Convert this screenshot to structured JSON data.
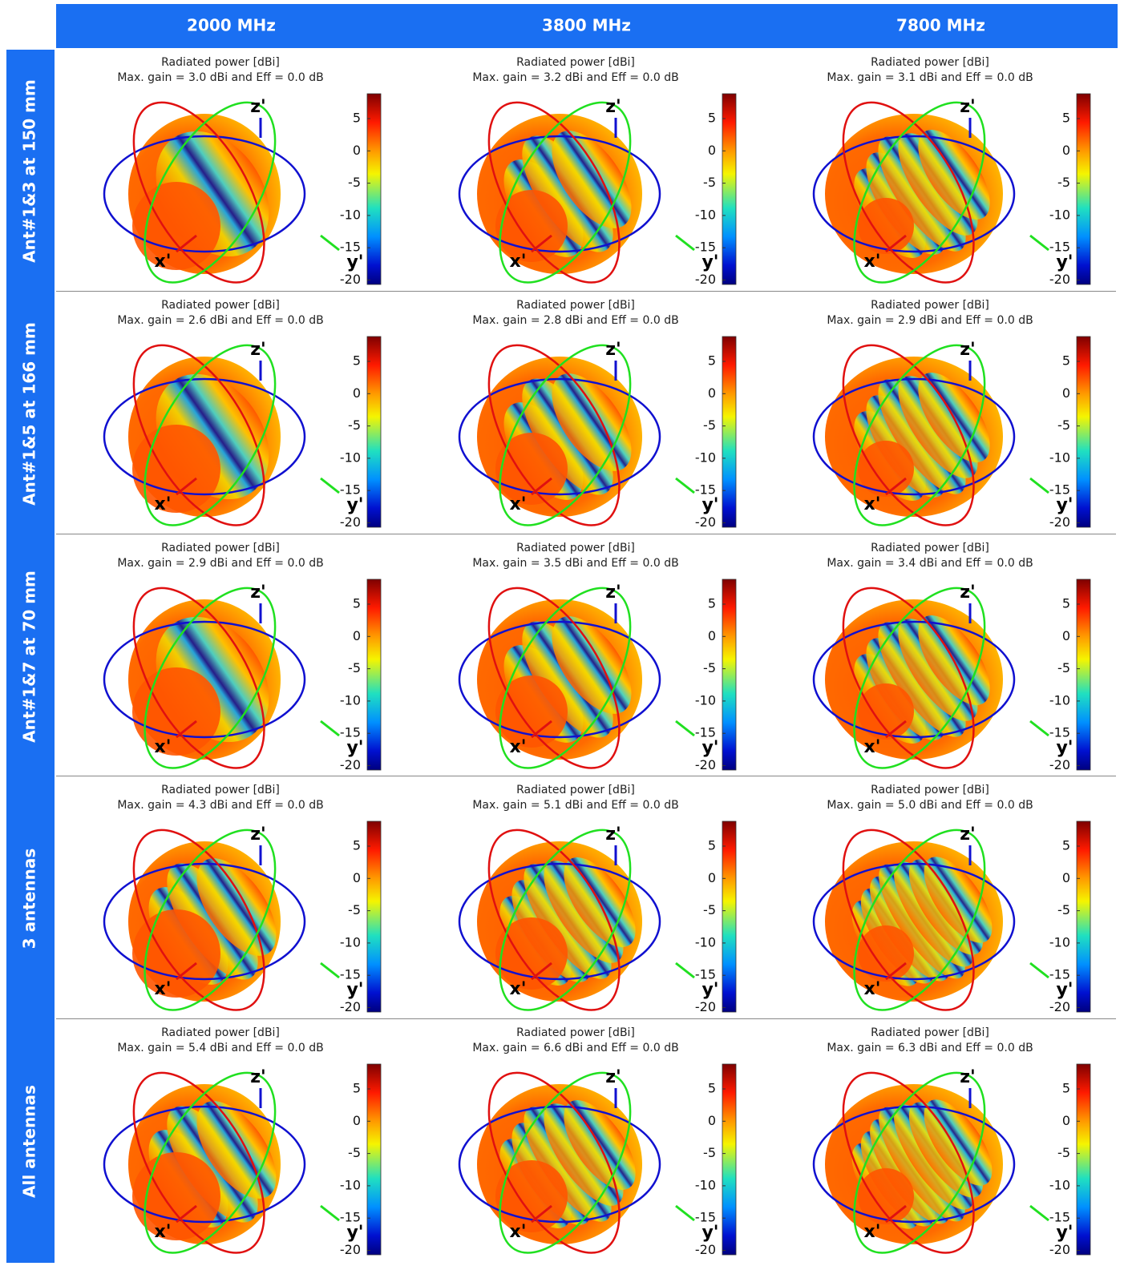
{
  "columns": [
    "2000 MHz",
    "3800 MHz",
    "7800 MHz"
  ],
  "rows": [
    {
      "label": "Ant#1&3 at 150 mm",
      "cells": [
        {
          "title": "Radiated power [dBi]",
          "subtitle": "Max. gain = 3.0 dBi and Eff = 0.0 dB"
        },
        {
          "title": "Radiated power [dBi]",
          "subtitle": "Max. gain = 3.2 dBi and Eff = 0.0 dB"
        },
        {
          "title": "Radiated power [dBi]",
          "subtitle": "Max. gain = 3.1 dBi and Eff = 0.0 dB"
        }
      ]
    },
    {
      "label": "Ant#1&5 at 166 mm",
      "cells": [
        {
          "title": "Radiated power [dBi]",
          "subtitle": "Max. gain = 2.6 dBi and Eff = 0.0 dB"
        },
        {
          "title": "Radiated power [dBi]",
          "subtitle": "Max. gain = 2.8 dBi and Eff = 0.0 dB"
        },
        {
          "title": "Radiated power [dBi]",
          "subtitle": "Max. gain = 2.9 dBi and Eff = 0.0 dB"
        }
      ]
    },
    {
      "label": "Ant#1&7 at 70 mm",
      "cells": [
        {
          "title": "Radiated power [dBi]",
          "subtitle": "Max. gain = 2.9 dBi and Eff = 0.0 dB"
        },
        {
          "title": "Radiated power [dBi]",
          "subtitle": "Max. gain = 3.5 dBi and Eff = 0.0 dB"
        },
        {
          "title": "Radiated power [dBi]",
          "subtitle": "Max. gain = 3.4 dBi and Eff = 0.0 dB"
        }
      ]
    },
    {
      "label": "3 antennas",
      "cells": [
        {
          "title": "Radiated power [dBi]",
          "subtitle": "Max. gain = 4.3 dBi and Eff = 0.0 dB"
        },
        {
          "title": "Radiated power [dBi]",
          "subtitle": "Max. gain = 5.1 dBi and Eff = 0.0 dB"
        },
        {
          "title": "Radiated power [dBi]",
          "subtitle": "Max. gain = 5.0 dBi and Eff = 0.0 dB"
        }
      ]
    },
    {
      "label": "All antennas",
      "cells": [
        {
          "title": "Radiated power [dBi]",
          "subtitle": "Max. gain = 5.4 dBi and Eff = 0.0 dB"
        },
        {
          "title": "Radiated power [dBi]",
          "subtitle": "Max. gain = 6.6 dBi and Eff = 0.0 dB"
        },
        {
          "title": "Radiated power [dBi]",
          "subtitle": "Max. gain = 6.3 dBi and Eff = 0.0 dB"
        }
      ]
    }
  ],
  "axis_labels": {
    "x": "x'",
    "y": "y'",
    "z": "z'"
  },
  "colorbar_ticks": [
    5,
    0,
    -5,
    -10,
    -15,
    -20
  ]
}
